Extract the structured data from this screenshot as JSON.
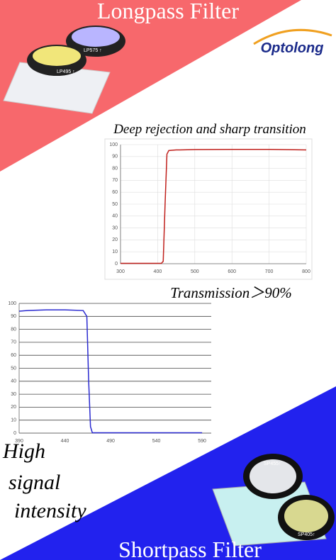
{
  "header": {
    "title": "Longpass Filter",
    "brand": "Optolong"
  },
  "footer": {
    "title": "Shortpass Filter"
  },
  "callouts": {
    "rejection": "Deep rejection and sharp transition",
    "transmission": "Transmission＞90%",
    "intensity": [
      "High",
      "signal",
      "intensity"
    ]
  },
  "filters": {
    "longpass": [
      "LP575 ↑",
      "LP495 ↑"
    ],
    "shortpass": [
      "SP455↑",
      "SP405↑"
    ]
  },
  "chart_data": [
    {
      "type": "line",
      "x": [
        300,
        410,
        415,
        420,
        425,
        430,
        450,
        500,
        600,
        700,
        800
      ],
      "values": [
        0.3,
        0.3,
        2,
        50,
        92,
        95,
        95.5,
        95.8,
        96,
        96,
        95.5
      ],
      "color": "#c0201c",
      "xlim": [
        300,
        800
      ],
      "xticks": [
        300,
        400,
        500,
        600,
        700,
        800
      ],
      "ylim": [
        0,
        100
      ],
      "yticks": [
        0,
        10,
        20,
        30,
        40,
        50,
        60,
        70,
        80,
        90,
        100
      ],
      "grid": "both"
    },
    {
      "type": "line",
      "x": [
        390,
        400,
        420,
        440,
        460,
        464,
        466,
        468,
        470,
        500,
        590
      ],
      "values": [
        94,
        94.5,
        95,
        95,
        94.5,
        90,
        40,
        5,
        0.3,
        0.3,
        0.3
      ],
      "color": "#2a2ad0",
      "xlim": [
        390,
        600
      ],
      "xticks": [
        390,
        440,
        490,
        540,
        590
      ],
      "ylim": [
        0,
        100
      ],
      "yticks": [
        0,
        10,
        20,
        30,
        40,
        50,
        60,
        70,
        80,
        90,
        100
      ],
      "grid": "horizontal"
    }
  ]
}
